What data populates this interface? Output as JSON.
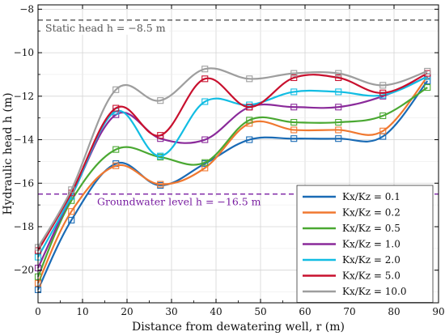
{
  "chart_data": {
    "type": "line",
    "xlabel": "Distance from dewatering well, r (m)",
    "ylabel": "Hydraulic head h (m)",
    "xlim": [
      0,
      90
    ],
    "ylim": [
      -21.5,
      -7.8
    ],
    "xticks": [
      0,
      10,
      20,
      30,
      40,
      50,
      60,
      70,
      80,
      90
    ],
    "yticks": [
      -20,
      -18,
      -16,
      -14,
      -12,
      -10,
      -8
    ],
    "xtick_labels": [
      "0",
      "10",
      "20",
      "30",
      "40",
      "50",
      "60",
      "70",
      "80",
      "90"
    ],
    "ytick_labels": [
      "−20",
      "−18",
      "−16",
      "−14",
      "−12",
      "−10",
      "−8"
    ],
    "grid": true,
    "legend_position": "bottom-right",
    "x": [
      0,
      7.5,
      17.5,
      27.5,
      37.5,
      47.5,
      57.5,
      67.5,
      77.5,
      87.5
    ],
    "series": [
      {
        "name": "Kx/Kz = 0.1",
        "color": "#1a6bb5",
        "values": [
          -20.9,
          -17.7,
          -15.1,
          -16.1,
          -15.1,
          -14.0,
          -13.95,
          -13.95,
          -13.85,
          -11.3
        ]
      },
      {
        "name": "Kx/Kz = 0.2",
        "color": "#f07830",
        "values": [
          -20.6,
          -17.3,
          -15.2,
          -16.05,
          -15.3,
          -13.25,
          -13.55,
          -13.55,
          -13.6,
          -11.1
        ]
      },
      {
        "name": "Kx/Kz = 0.5",
        "color": "#4aa832",
        "values": [
          -20.3,
          -16.8,
          -14.45,
          -14.8,
          -15.05,
          -13.1,
          -13.2,
          -13.2,
          -12.9,
          -11.6
        ]
      },
      {
        "name": "Kx/Kz = 1.0",
        "color": "#8a2a9a",
        "values": [
          -19.9,
          -16.6,
          -12.85,
          -13.95,
          -14.0,
          -12.5,
          -12.5,
          -12.5,
          -12.0,
          -11.1
        ]
      },
      {
        "name": "Kx/Kz = 2.0",
        "color": "#12bde3",
        "values": [
          -19.4,
          -16.6,
          -12.7,
          -14.75,
          -12.25,
          -12.4,
          -11.8,
          -11.8,
          -11.95,
          -11.1
        ]
      },
      {
        "name": "Kx/Kz = 5.0",
        "color": "#c8102e",
        "values": [
          -19.1,
          -16.45,
          -12.55,
          -13.8,
          -11.2,
          -12.5,
          -11.15,
          -11.15,
          -11.85,
          -10.95
        ]
      },
      {
        "name": "Kx/Kz = 10.0",
        "color": "#9e9e9e",
        "values": [
          -18.95,
          -16.3,
          -11.7,
          -12.2,
          -10.75,
          -11.2,
          -10.95,
          -10.95,
          -11.5,
          -10.85
        ]
      }
    ],
    "annotations": [
      {
        "text": "Static head h = −8.5 m",
        "y": -8.5,
        "color": "#555555",
        "style": "dashed"
      },
      {
        "text": "Groundwater level h = −16.5 m",
        "y": -16.5,
        "color": "#7a1fa2",
        "style": "dashed"
      }
    ]
  }
}
